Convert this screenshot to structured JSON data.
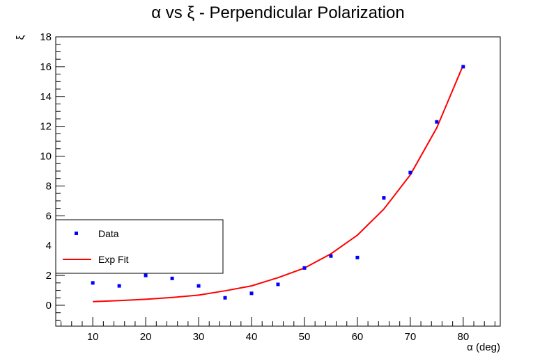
{
  "chart_data": {
    "type": "scatter",
    "title": "α vs ξ - Perpendicular Polarization",
    "xlabel": "α (deg)",
    "ylabel": "ξ",
    "xlim": [
      3,
      87
    ],
    "ylim": [
      -1.4,
      18
    ],
    "x_ticks": [
      10,
      20,
      30,
      40,
      50,
      60,
      70,
      80
    ],
    "y_ticks": [
      0,
      2,
      4,
      6,
      8,
      10,
      12,
      14,
      16,
      18
    ],
    "grid": false,
    "legend": {
      "placement": "left-middle",
      "entries": [
        {
          "label": "Data",
          "marker": "point",
          "color": "#0000ff"
        },
        {
          "label": "Exp Fit",
          "marker": "line",
          "color": "#ff0000"
        }
      ]
    },
    "series": [
      {
        "name": "Data",
        "kind": "points",
        "color": "#0000ff",
        "x": [
          10,
          15,
          20,
          25,
          30,
          35,
          40,
          45,
          50,
          55,
          60,
          65,
          70,
          75,
          80
        ],
        "y": [
          1.5,
          1.3,
          2.0,
          1.8,
          1.3,
          0.5,
          0.8,
          1.4,
          2.5,
          3.3,
          3.2,
          7.2,
          8.9,
          12.3,
          16.0
        ]
      },
      {
        "name": "Exp Fit",
        "kind": "line",
        "color": "#ff0000",
        "x": [
          10,
          15,
          20,
          25,
          30,
          35,
          40,
          45,
          50,
          55,
          60,
          65,
          70,
          75,
          80
        ],
        "y": [
          0.24,
          0.31,
          0.4,
          0.52,
          0.68,
          0.97,
          1.3,
          1.85,
          2.5,
          3.45,
          4.7,
          6.45,
          8.75,
          11.9,
          16.1
        ]
      }
    ]
  }
}
